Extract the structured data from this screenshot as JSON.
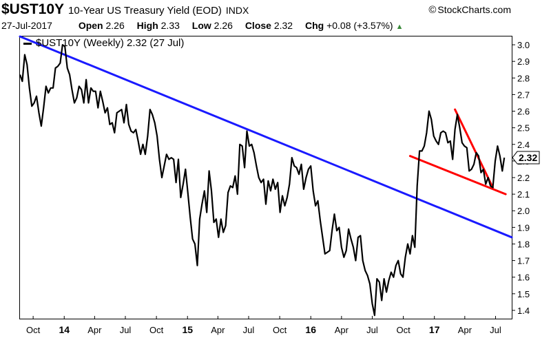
{
  "header": {
    "symbol": "$UST10Y",
    "name": "10-Year US Treasury Yield (EOD)",
    "exchange": "INDX",
    "brand": "StockCharts.com",
    "date": "27-Jul-2017",
    "open_label": "Open",
    "open": "2.26",
    "high_label": "High",
    "high": "2.33",
    "low_label": "Low",
    "low": "2.26",
    "close_label": "Close",
    "close": "2.32",
    "chg_label": "Chg",
    "chg": "+0.08 (+3.57%)"
  },
  "legend": {
    "label": "$UST10Y (Weekly) 2.32 (27 Jul)"
  },
  "last_value_label": "2.32",
  "colors": {
    "price": "#000000",
    "trendline_long": "#1a1aff",
    "trendline_short": "#ff0000",
    "up": "#3a8a3a"
  },
  "chart_data": {
    "type": "line",
    "ylim": [
      1.35,
      3.05
    ],
    "y_ticks": [
      "1.4",
      "1.5",
      "1.6",
      "1.7",
      "1.8",
      "1.9",
      "2.0",
      "2.1",
      "2.2",
      "2.3",
      "2.4",
      "2.5",
      "2.6",
      "2.7",
      "2.8",
      "2.9",
      "3.0"
    ],
    "x_range": [
      "2013-08-23",
      "2017-08-18"
    ],
    "x_ticks": [
      {
        "date": "2013-10-01",
        "label": "Oct",
        "year": false
      },
      {
        "date": "2014-01-01",
        "label": "14",
        "year": true
      },
      {
        "date": "2014-04-01",
        "label": "Apr",
        "year": false
      },
      {
        "date": "2014-07-01",
        "label": "Jul",
        "year": false
      },
      {
        "date": "2014-10-01",
        "label": "Oct",
        "year": false
      },
      {
        "date": "2015-01-01",
        "label": "15",
        "year": true
      },
      {
        "date": "2015-04-01",
        "label": "Apr",
        "year": false
      },
      {
        "date": "2015-07-01",
        "label": "Jul",
        "year": false
      },
      {
        "date": "2015-10-01",
        "label": "Oct",
        "year": false
      },
      {
        "date": "2016-01-01",
        "label": "16",
        "year": true
      },
      {
        "date": "2016-04-01",
        "label": "Apr",
        "year": false
      },
      {
        "date": "2016-07-01",
        "label": "Jul",
        "year": false
      },
      {
        "date": "2016-10-01",
        "label": "Oct",
        "year": false
      },
      {
        "date": "2017-01-01",
        "label": "17",
        "year": true
      },
      {
        "date": "2017-04-01",
        "label": "Apr",
        "year": false
      },
      {
        "date": "2017-07-01",
        "label": "Jul",
        "year": false
      }
    ],
    "series": [
      {
        "points": [
          [
            "2013-08-23",
            2.82
          ],
          [
            "2013-08-30",
            2.78
          ],
          [
            "2013-09-06",
            2.94
          ],
          [
            "2013-09-13",
            2.88
          ],
          [
            "2013-09-20",
            2.74
          ],
          [
            "2013-09-27",
            2.63
          ],
          [
            "2013-10-04",
            2.65
          ],
          [
            "2013-10-11",
            2.69
          ],
          [
            "2013-10-18",
            2.59
          ],
          [
            "2013-10-25",
            2.51
          ],
          [
            "2013-11-01",
            2.62
          ],
          [
            "2013-11-08",
            2.75
          ],
          [
            "2013-11-15",
            2.71
          ],
          [
            "2013-11-22",
            2.74
          ],
          [
            "2013-11-29",
            2.74
          ],
          [
            "2013-12-06",
            2.86
          ],
          [
            "2013-12-13",
            2.87
          ],
          [
            "2013-12-20",
            2.89
          ],
          [
            "2013-12-27",
            3.0
          ],
          [
            "2014-01-03",
            2.99
          ],
          [
            "2014-01-10",
            2.86
          ],
          [
            "2014-01-17",
            2.82
          ],
          [
            "2014-01-24",
            2.73
          ],
          [
            "2014-01-31",
            2.65
          ],
          [
            "2014-02-07",
            2.68
          ],
          [
            "2014-02-14",
            2.75
          ],
          [
            "2014-02-21",
            2.73
          ],
          [
            "2014-02-28",
            2.65
          ],
          [
            "2014-03-07",
            2.79
          ],
          [
            "2014-03-14",
            2.65
          ],
          [
            "2014-03-21",
            2.74
          ],
          [
            "2014-03-28",
            2.72
          ],
          [
            "2014-04-04",
            2.72
          ],
          [
            "2014-04-11",
            2.62
          ],
          [
            "2014-04-18",
            2.72
          ],
          [
            "2014-04-25",
            2.66
          ],
          [
            "2014-05-02",
            2.59
          ],
          [
            "2014-05-09",
            2.62
          ],
          [
            "2014-05-16",
            2.52
          ],
          [
            "2014-05-23",
            2.53
          ],
          [
            "2014-05-30",
            2.47
          ],
          [
            "2014-06-06",
            2.59
          ],
          [
            "2014-06-13",
            2.6
          ],
          [
            "2014-06-20",
            2.61
          ],
          [
            "2014-06-27",
            2.53
          ],
          [
            "2014-07-04",
            2.64
          ],
          [
            "2014-07-11",
            2.52
          ],
          [
            "2014-07-18",
            2.48
          ],
          [
            "2014-07-25",
            2.47
          ],
          [
            "2014-08-01",
            2.49
          ],
          [
            "2014-08-08",
            2.42
          ],
          [
            "2014-08-15",
            2.34
          ],
          [
            "2014-08-22",
            2.4
          ],
          [
            "2014-08-29",
            2.34
          ],
          [
            "2014-09-05",
            2.45
          ],
          [
            "2014-09-12",
            2.61
          ],
          [
            "2014-09-19",
            2.58
          ],
          [
            "2014-09-26",
            2.53
          ],
          [
            "2014-10-03",
            2.45
          ],
          [
            "2014-10-10",
            2.31
          ],
          [
            "2014-10-17",
            2.2
          ],
          [
            "2014-10-24",
            2.27
          ],
          [
            "2014-10-31",
            2.34
          ],
          [
            "2014-11-07",
            2.31
          ],
          [
            "2014-11-14",
            2.32
          ],
          [
            "2014-11-21",
            2.31
          ],
          [
            "2014-11-28",
            2.17
          ],
          [
            "2014-12-05",
            2.31
          ],
          [
            "2014-12-12",
            2.08
          ],
          [
            "2014-12-19",
            2.16
          ],
          [
            "2014-12-26",
            2.25
          ],
          [
            "2015-01-02",
            2.11
          ],
          [
            "2015-01-09",
            1.96
          ],
          [
            "2015-01-16",
            1.83
          ],
          [
            "2015-01-23",
            1.8
          ],
          [
            "2015-01-30",
            1.67
          ],
          [
            "2015-02-06",
            1.95
          ],
          [
            "2015-02-13",
            2.04
          ],
          [
            "2015-02-20",
            2.12
          ],
          [
            "2015-02-27",
            1.99
          ],
          [
            "2015-03-06",
            2.24
          ],
          [
            "2015-03-13",
            2.12
          ],
          [
            "2015-03-20",
            1.93
          ],
          [
            "2015-03-27",
            1.95
          ],
          [
            "2015-04-03",
            1.84
          ],
          [
            "2015-04-10",
            1.95
          ],
          [
            "2015-04-17",
            1.87
          ],
          [
            "2015-04-24",
            1.91
          ],
          [
            "2015-05-01",
            2.11
          ],
          [
            "2015-05-08",
            2.15
          ],
          [
            "2015-05-15",
            2.14
          ],
          [
            "2015-05-22",
            2.21
          ],
          [
            "2015-05-29",
            2.1
          ],
          [
            "2015-06-05",
            2.4
          ],
          [
            "2015-06-12",
            2.39
          ],
          [
            "2015-06-19",
            2.26
          ],
          [
            "2015-06-26",
            2.48
          ],
          [
            "2015-07-03",
            2.39
          ],
          [
            "2015-07-10",
            2.4
          ],
          [
            "2015-07-17",
            2.35
          ],
          [
            "2015-07-24",
            2.27
          ],
          [
            "2015-07-31",
            2.2
          ],
          [
            "2015-08-07",
            2.17
          ],
          [
            "2015-08-14",
            2.19
          ],
          [
            "2015-08-21",
            2.04
          ],
          [
            "2015-08-28",
            2.18
          ],
          [
            "2015-09-04",
            2.12
          ],
          [
            "2015-09-11",
            2.19
          ],
          [
            "2015-09-18",
            2.13
          ],
          [
            "2015-09-25",
            2.17
          ],
          [
            "2015-10-02",
            1.99
          ],
          [
            "2015-10-09",
            2.09
          ],
          [
            "2015-10-16",
            2.03
          ],
          [
            "2015-10-23",
            2.08
          ],
          [
            "2015-10-30",
            2.16
          ],
          [
            "2015-11-06",
            2.32
          ],
          [
            "2015-11-13",
            2.27
          ],
          [
            "2015-11-20",
            2.26
          ],
          [
            "2015-11-27",
            2.22
          ],
          [
            "2015-12-04",
            2.28
          ],
          [
            "2015-12-11",
            2.13
          ],
          [
            "2015-12-18",
            2.2
          ],
          [
            "2015-12-25",
            2.25
          ],
          [
            "2016-01-01",
            2.27
          ],
          [
            "2016-01-08",
            2.12
          ],
          [
            "2016-01-15",
            2.03
          ],
          [
            "2016-01-22",
            2.06
          ],
          [
            "2016-01-29",
            1.94
          ],
          [
            "2016-02-05",
            1.84
          ],
          [
            "2016-02-12",
            1.74
          ],
          [
            "2016-02-19",
            1.75
          ],
          [
            "2016-02-26",
            1.76
          ],
          [
            "2016-03-04",
            1.88
          ],
          [
            "2016-03-11",
            1.98
          ],
          [
            "2016-03-18",
            1.88
          ],
          [
            "2016-03-25",
            1.9
          ],
          [
            "2016-04-01",
            1.78
          ],
          [
            "2016-04-08",
            1.72
          ],
          [
            "2016-04-15",
            1.76
          ],
          [
            "2016-04-22",
            1.89
          ],
          [
            "2016-04-29",
            1.83
          ],
          [
            "2016-05-06",
            1.78
          ],
          [
            "2016-05-13",
            1.7
          ],
          [
            "2016-05-20",
            1.84
          ],
          [
            "2016-05-27",
            1.85
          ],
          [
            "2016-06-03",
            1.7
          ],
          [
            "2016-06-10",
            1.64
          ],
          [
            "2016-06-17",
            1.61
          ],
          [
            "2016-06-24",
            1.56
          ],
          [
            "2016-07-01",
            1.44
          ],
          [
            "2016-07-08",
            1.37
          ],
          [
            "2016-07-15",
            1.59
          ],
          [
            "2016-07-22",
            1.57
          ],
          [
            "2016-07-29",
            1.46
          ],
          [
            "2016-08-05",
            1.59
          ],
          [
            "2016-08-12",
            1.51
          ],
          [
            "2016-08-19",
            1.58
          ],
          [
            "2016-08-26",
            1.63
          ],
          [
            "2016-09-02",
            1.6
          ],
          [
            "2016-09-09",
            1.67
          ],
          [
            "2016-09-16",
            1.7
          ],
          [
            "2016-09-23",
            1.62
          ],
          [
            "2016-09-30",
            1.6
          ],
          [
            "2016-10-07",
            1.72
          ],
          [
            "2016-10-14",
            1.8
          ],
          [
            "2016-10-21",
            1.74
          ],
          [
            "2016-10-28",
            1.85
          ],
          [
            "2016-11-04",
            1.78
          ],
          [
            "2016-11-11",
            2.15
          ],
          [
            "2016-11-18",
            2.36
          ],
          [
            "2016-11-25",
            2.36
          ],
          [
            "2016-12-02",
            2.39
          ],
          [
            "2016-12-09",
            2.47
          ],
          [
            "2016-12-16",
            2.6
          ],
          [
            "2016-12-23",
            2.55
          ],
          [
            "2016-12-30",
            2.45
          ],
          [
            "2017-01-06",
            2.42
          ],
          [
            "2017-01-13",
            2.4
          ],
          [
            "2017-01-20",
            2.47
          ],
          [
            "2017-01-27",
            2.48
          ],
          [
            "2017-02-03",
            2.47
          ],
          [
            "2017-02-10",
            2.41
          ],
          [
            "2017-02-17",
            2.42
          ],
          [
            "2017-02-24",
            2.31
          ],
          [
            "2017-03-03",
            2.49
          ],
          [
            "2017-03-10",
            2.58
          ],
          [
            "2017-03-17",
            2.5
          ],
          [
            "2017-03-24",
            2.41
          ],
          [
            "2017-03-31",
            2.39
          ],
          [
            "2017-04-07",
            2.38
          ],
          [
            "2017-04-14",
            2.24
          ],
          [
            "2017-04-21",
            2.25
          ],
          [
            "2017-04-28",
            2.28
          ],
          [
            "2017-05-05",
            2.35
          ],
          [
            "2017-05-12",
            2.33
          ],
          [
            "2017-05-19",
            2.23
          ],
          [
            "2017-05-26",
            2.25
          ],
          [
            "2017-06-02",
            2.16
          ],
          [
            "2017-06-09",
            2.2
          ],
          [
            "2017-06-16",
            2.15
          ],
          [
            "2017-06-23",
            2.14
          ],
          [
            "2017-06-30",
            2.3
          ],
          [
            "2017-07-07",
            2.39
          ],
          [
            "2017-07-14",
            2.33
          ],
          [
            "2017-07-21",
            2.24
          ],
          [
            "2017-07-27",
            2.32
          ]
        ]
      }
    ],
    "annotations": [
      {
        "type": "trendline",
        "color": "blue",
        "from": [
          "2013-08-23",
          3.05
        ],
        "to": [
          "2017-08-18",
          1.84
        ]
      },
      {
        "type": "trendline",
        "color": "red",
        "from": [
          "2016-10-21",
          2.33
        ],
        "to": [
          "2017-07-31",
          2.1
        ]
      },
      {
        "type": "trendline",
        "color": "red",
        "from": [
          "2017-03-03",
          2.61
        ],
        "to": [
          "2017-06-23",
          2.14
        ]
      }
    ]
  }
}
